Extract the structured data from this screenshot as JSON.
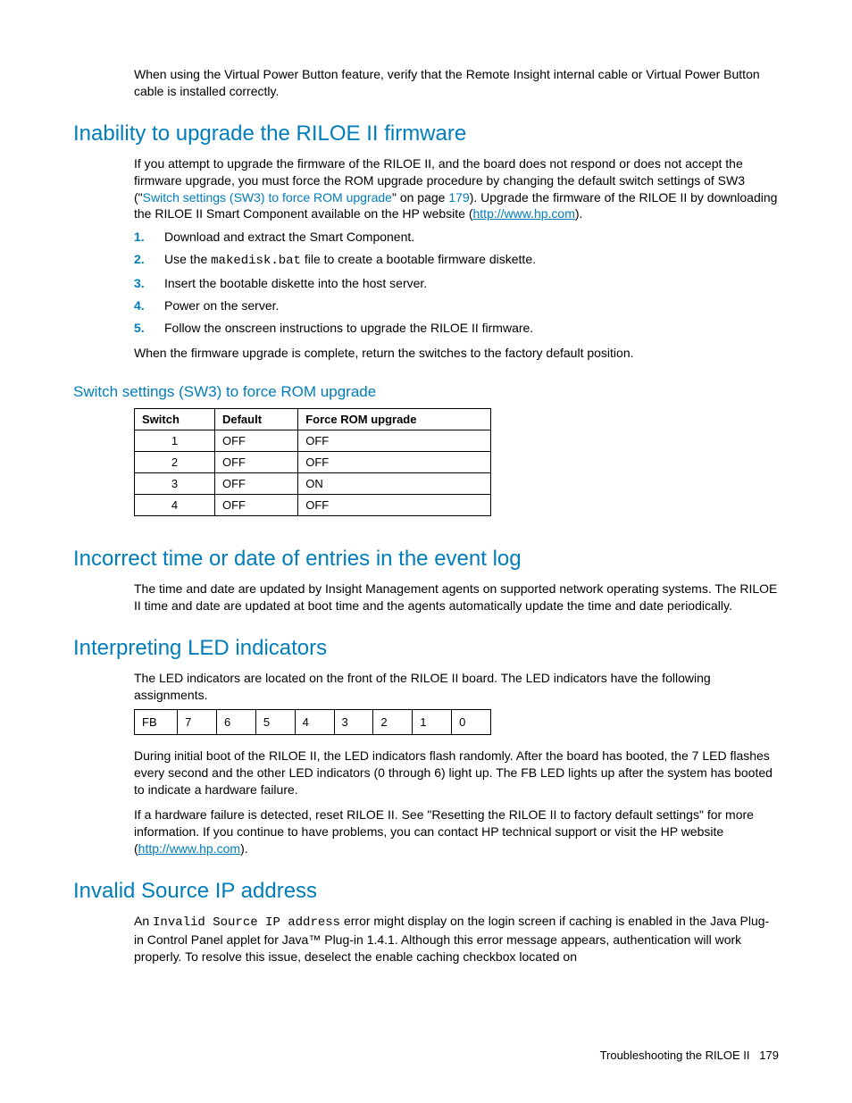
{
  "intro_para": "When using the Virtual Power Button feature, verify that the Remote Insight internal cable or Virtual Power Button cable is installed correctly.",
  "h2_inability": "Inability to upgrade the RILOE II firmware",
  "inability_para_a": "If you attempt to upgrade the firmware of the RILOE II, and the board does not respond or does not accept the firmware upgrade, you must force the ROM upgrade procedure by changing the default switch settings of SW3 (\"",
  "inability_xref": "Switch settings (SW3) to force ROM upgrade",
  "inability_para_b": "\" on page ",
  "inability_page": "179",
  "inability_para_c": "). Upgrade the firmware of the RILOE II by downloading the RILOE II Smart Component available on the HP website (",
  "hp_url": "http://www.hp.com",
  "inability_para_d": ").",
  "steps": [
    {
      "n": "1.",
      "t": "Download and extract the Smart Component."
    },
    {
      "n": "2.",
      "pre": "Use the ",
      "mono": "makedisk.bat",
      "post": " file to create a bootable firmware diskette."
    },
    {
      "n": "3.",
      "t": "Insert the bootable diskette into the host server."
    },
    {
      "n": "4.",
      "t": "Power on the server."
    },
    {
      "n": "5.",
      "t": "Follow the onscreen instructions to upgrade the RILOE II firmware."
    }
  ],
  "after_steps": "When the firmware upgrade is complete, return the switches to the factory default position.",
  "h3_switch": "Switch settings (SW3) to force ROM upgrade",
  "switch_table": {
    "headers": [
      "Switch",
      "Default",
      "Force ROM upgrade"
    ],
    "rows": [
      [
        "1",
        "OFF",
        "OFF"
      ],
      [
        "2",
        "OFF",
        "OFF"
      ],
      [
        "3",
        "OFF",
        "ON"
      ],
      [
        "4",
        "OFF",
        "OFF"
      ]
    ]
  },
  "h2_incorrect": "Incorrect time or date of entries in the event log",
  "incorrect_para": "The time and date are updated by Insight Management agents on supported network operating systems. The RILOE II time and date are updated at boot time and the agents automatically update the time and date periodically.",
  "h2_led": "Interpreting LED indicators",
  "led_intro": "The LED indicators are located on the front of the RILOE II board. The LED indicators have the following assignments.",
  "led_cells": [
    "FB",
    "7",
    "6",
    "5",
    "4",
    "3",
    "2",
    "1",
    "0"
  ],
  "led_p2": "During initial boot of the RILOE II, the LED indicators flash randomly. After the board has booted, the 7 LED flashes every second and the other LED indicators (0 through 6) light up. The FB LED lights up after the system has booted to indicate a hardware failure.",
  "led_p3a": "If a hardware failure is detected, reset RILOE II. See \"Resetting the RILOE II to factory default settings\" for more information. If you continue to have problems, you can contact HP technical support or visit the HP website (",
  "led_p3b": ").",
  "h2_invalid": "Invalid Source IP address",
  "invalid_pre": "An ",
  "invalid_mono": "Invalid Source IP address",
  "invalid_post": " error might display on the login screen if caching is enabled in the Java Plug-in Control Panel applet for Java™ Plug-in 1.4.1. Although this error message appears, authentication will work properly. To resolve this issue, deselect the enable caching checkbox located on",
  "footer_text": "Troubleshooting the RILOE II",
  "footer_page": "179"
}
